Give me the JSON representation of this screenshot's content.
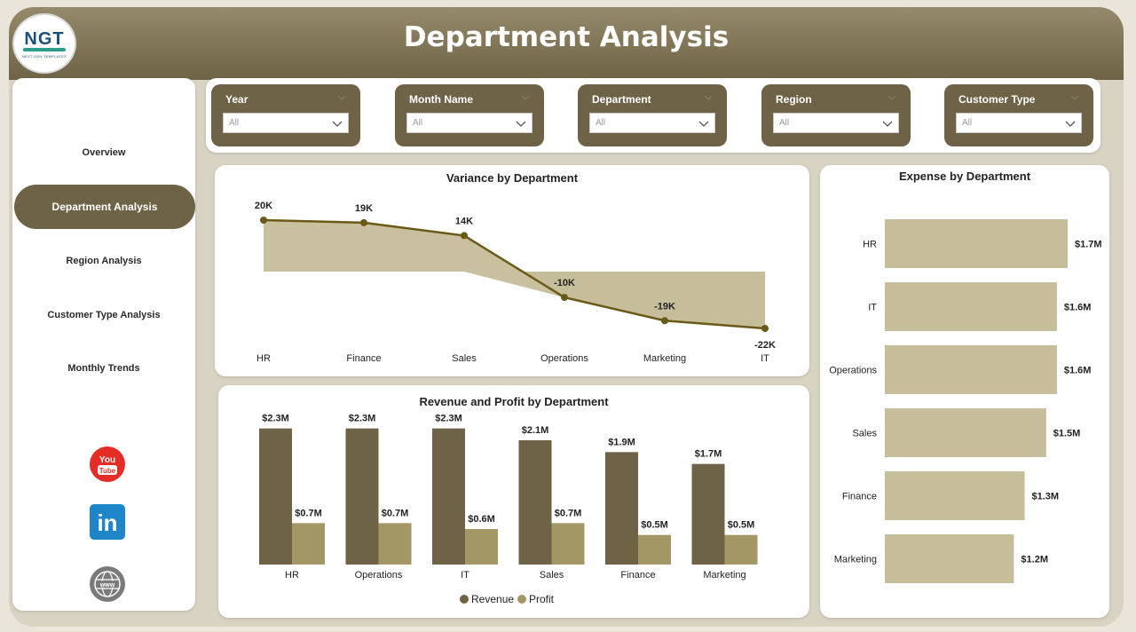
{
  "header": {
    "title": "Department Analysis",
    "logo": {
      "text": "NGT",
      "subtext": "NEXT GEN TEMPLATES"
    }
  },
  "sidebar": {
    "items": [
      {
        "label": "Overview",
        "active": false
      },
      {
        "label": "Department Analysis",
        "active": true
      },
      {
        "label": "Region Analysis",
        "active": false
      },
      {
        "label": "Customer Type Analysis",
        "active": false
      },
      {
        "label": "Monthly Trends",
        "active": false
      }
    ],
    "social": [
      {
        "icon": "youtube-icon",
        "text_top": "You",
        "text_bottom": "Tube",
        "color": "#e52d27"
      },
      {
        "icon": "linkedin-icon",
        "text": "in",
        "color": "#1e86c8"
      },
      {
        "icon": "globe-icon",
        "text": "www",
        "color": "#7a7a7a"
      }
    ]
  },
  "filters": [
    {
      "label": "Year",
      "value": "All"
    },
    {
      "label": "Month Name",
      "value": "All"
    },
    {
      "label": "Department",
      "value": "All"
    },
    {
      "label": "Region",
      "value": "All"
    },
    {
      "label": "Customer Type",
      "value": "All"
    }
  ],
  "colors": {
    "accent": "#6e6346",
    "light": "#c6bd9b",
    "profit": "#a49766",
    "line": "#6b5a17"
  },
  "chart_data": [
    {
      "type": "area",
      "title": "Variance by Department",
      "categories": [
        "HR",
        "Finance",
        "Sales",
        "Operations",
        "Marketing",
        "IT"
      ],
      "values": [
        20000,
        19000,
        14000,
        -10000,
        -19000,
        -22000
      ],
      "labels": [
        "20K",
        "19K",
        "14K",
        "-10K",
        "-19K",
        "-22K"
      ],
      "ylim": [
        -25000,
        25000
      ],
      "grid": false
    },
    {
      "type": "bar",
      "orientation": "horizontal",
      "title": "Expense by Department",
      "categories": [
        "HR",
        "IT",
        "Operations",
        "Sales",
        "Finance",
        "Marketing"
      ],
      "values": [
        1.7,
        1.6,
        1.6,
        1.5,
        1.3,
        1.2
      ],
      "labels": [
        "$1.7M",
        "$1.6M",
        "$1.6M",
        "$1.5M",
        "$1.3M",
        "$1.2M"
      ],
      "xlim": [
        0,
        1.7
      ],
      "grid": false
    },
    {
      "type": "bar",
      "title": "Revenue and Profit by Department",
      "categories": [
        "HR",
        "Operations",
        "IT",
        "Sales",
        "Finance",
        "Marketing"
      ],
      "series": [
        {
          "name": "Revenue",
          "values": [
            2.3,
            2.3,
            2.3,
            2.1,
            1.9,
            1.7
          ],
          "labels": [
            "$2.3M",
            "$2.3M",
            "$2.3M",
            "$2.1M",
            "$1.9M",
            "$1.7M"
          ]
        },
        {
          "name": "Profit",
          "values": [
            0.7,
            0.7,
            0.6,
            0.7,
            0.5,
            0.5
          ],
          "labels": [
            "$0.7M",
            "$0.7M",
            "$0.6M",
            "$0.7M",
            "$0.5M",
            "$0.5M"
          ]
        }
      ],
      "ylim": [
        0,
        2.4
      ],
      "legend": "bottom",
      "grid": false
    }
  ]
}
